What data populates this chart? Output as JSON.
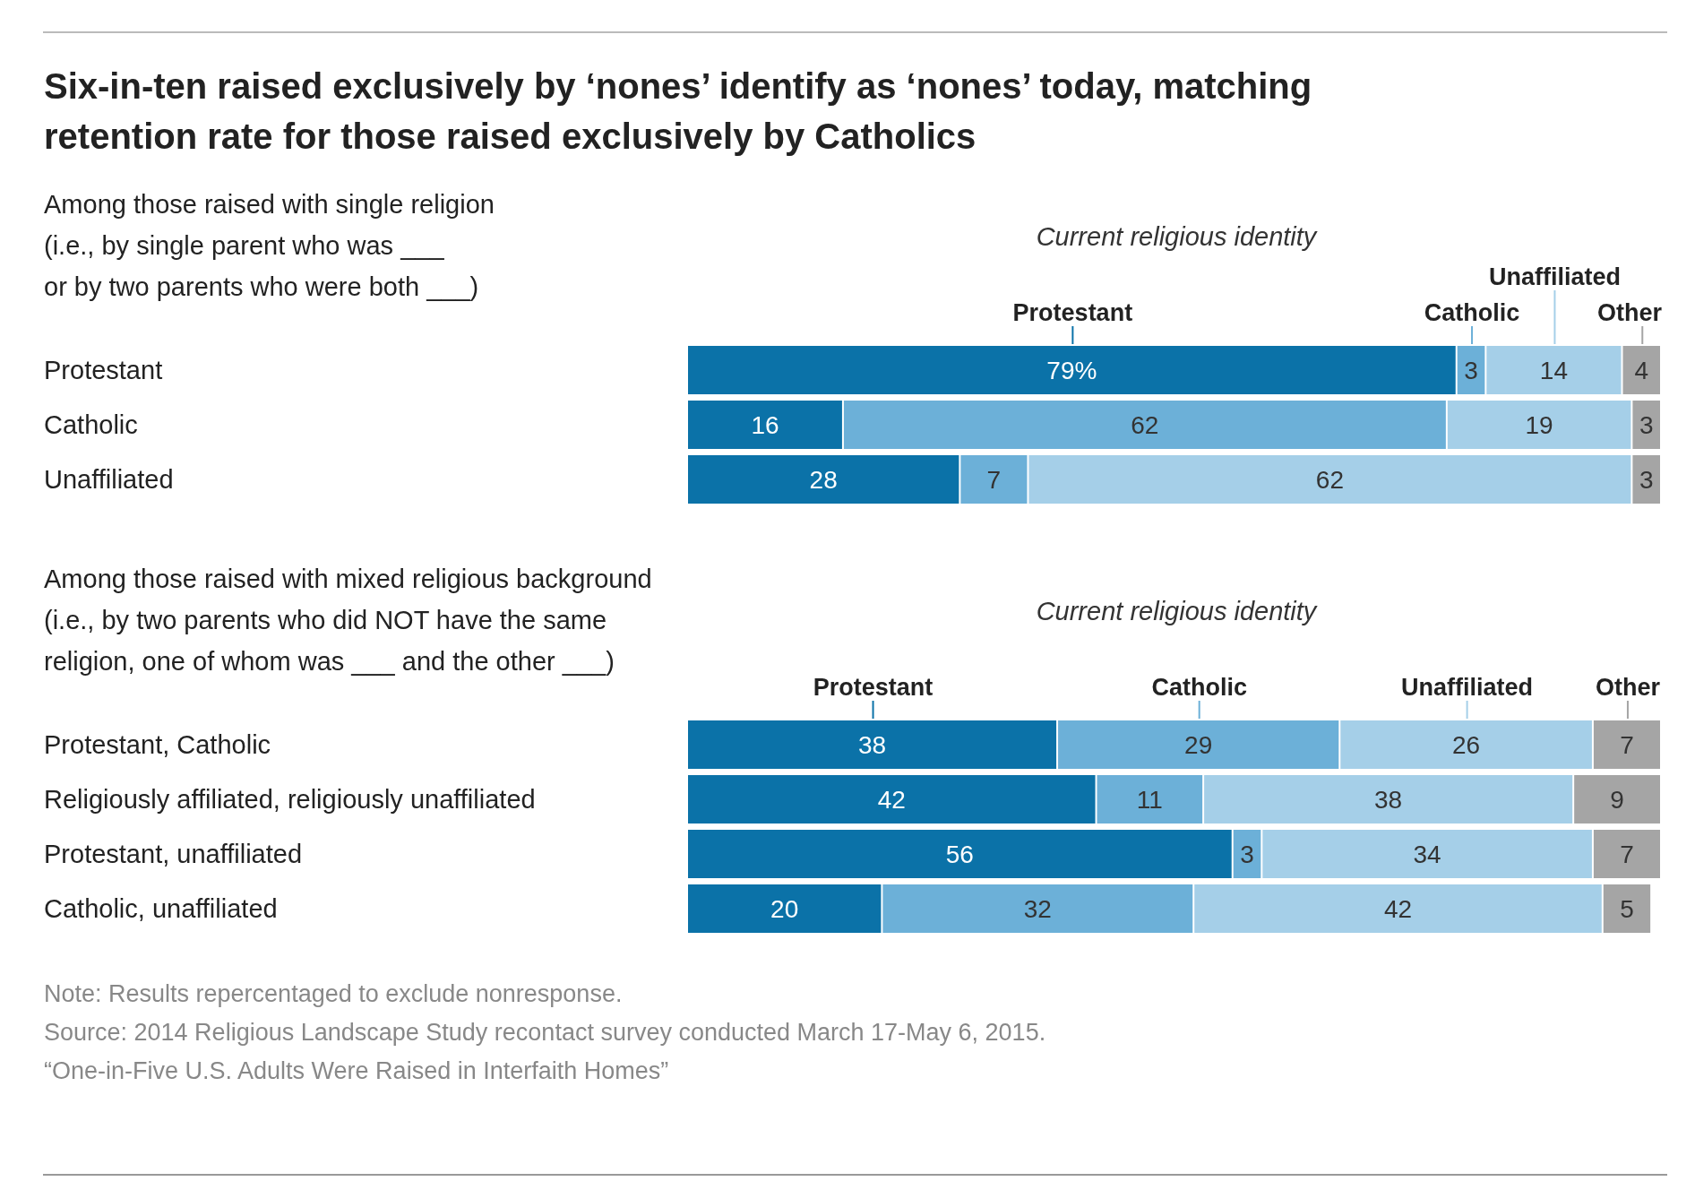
{
  "chart_data": [
    {
      "type": "bar",
      "orientation": "horizontal",
      "stacked": true,
      "title": "Six-in-ten raised exclusively by ‘nones’ identify as ‘nones’ today, matching\nretention rate for those raised exclusively by Catholics",
      "subtitle": "Among those raised with single religion\n(i.e., by single parent who was ___\nor by two parents who were both ___)",
      "legend_title": "Current religious identity",
      "legend": "top",
      "tick_labels": "y",
      "xlim": [
        0,
        100
      ],
      "categories": [
        "Protestant",
        "Catholic",
        "Unaffiliated"
      ],
      "series": [
        {
          "name": "Protestant",
          "color": "#0b72a8",
          "values": [
            79,
            16,
            28
          ],
          "value_labels": [
            "79%",
            "16",
            "28"
          ]
        },
        {
          "name": "Catholic",
          "color": "#6cb0d8",
          "values": [
            3,
            62,
            7
          ],
          "value_labels": [
            "3",
            "62",
            "7"
          ]
        },
        {
          "name": "Unaffiliated",
          "color": "#a5cfe8",
          "values": [
            14,
            19,
            62
          ],
          "value_labels": [
            "14",
            "19",
            "62"
          ]
        },
        {
          "name": "Other",
          "color": "#a5a5a5",
          "values": [
            4,
            3,
            3
          ],
          "value_labels": [
            "4",
            "3",
            "3"
          ]
        }
      ]
    },
    {
      "type": "bar",
      "orientation": "horizontal",
      "stacked": true,
      "subtitle": "Among those raised with mixed religious background\n(i.e., by two parents who did NOT have the same\nreligion, one of whom was  ___ and the other ___)",
      "legend_title": "Current religious identity",
      "legend": "top",
      "tick_labels": "y",
      "xlim": [
        0,
        100
      ],
      "categories": [
        "Protestant, Catholic",
        "Religiously affiliated, religiously unaffiliated",
        "Protestant, unaffiliated",
        "Catholic, unaffiliated"
      ],
      "series": [
        {
          "name": "Protestant",
          "color": "#0b72a8",
          "values": [
            38,
            42,
            56,
            20
          ],
          "value_labels": [
            "38",
            "42",
            "56",
            "20"
          ]
        },
        {
          "name": "Catholic",
          "color": "#6cb0d8",
          "values": [
            29,
            11,
            3,
            32
          ],
          "value_labels": [
            "29",
            "11",
            "3",
            "32"
          ]
        },
        {
          "name": "Unaffiliated",
          "color": "#a5cfe8",
          "values": [
            26,
            38,
            34,
            42
          ],
          "value_labels": [
            "26",
            "38",
            "34",
            "42"
          ]
        },
        {
          "name": "Other",
          "color": "#a5a5a5",
          "values": [
            7,
            9,
            7,
            5
          ],
          "value_labels": [
            "7",
            "9",
            "7",
            "5"
          ]
        }
      ],
      "annotations": [
        "Note: Results repercentaged to exclude nonresponse.",
        "Source: 2014 Religious Landscape Study recontact survey conducted March 17-May 6, 2015.",
        "“One-in-Five U.S. Adults Were Raised in Interfaith Homes”"
      ]
    }
  ]
}
